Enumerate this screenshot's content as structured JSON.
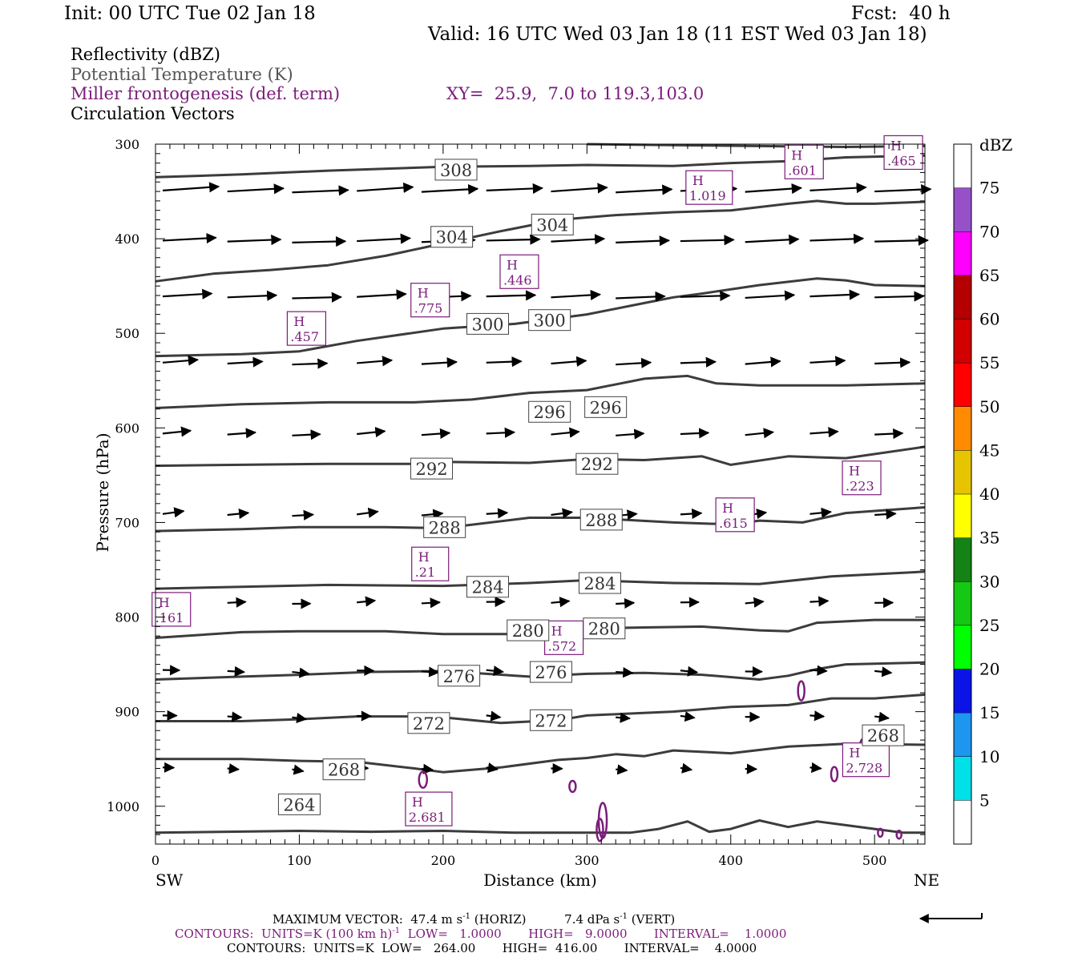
{
  "header": {
    "init": "Init: 00 UTC Tue 02 Jan 18",
    "fcst": "Fcst:  40 h",
    "valid": "Valid: 16 UTC Wed 03 Jan 18 (11 EST Wed 03 Jan 18)"
  },
  "legend": {
    "reflectivity": "Reflectivity (dBZ)",
    "theta": "Potential Temperature (K)",
    "frontogenesis": "Miller frontogenesis (def. term)",
    "xy": "XY=  25.9,  7.0 to 119.3,103.0",
    "vectors": "Circulation Vectors"
  },
  "colors": {
    "theta_contour": "#3c3c3c",
    "frontogenesis": "#7a1c7a",
    "vectors": "#000000"
  },
  "footer": {
    "max_vector_a": "MAXIMUM VECTOR:  47.4 m s",
    "max_vector_b": " (HORIZ)",
    "max_vector_c": "7.4 dPa s",
    "max_vector_d": " (VERT)",
    "sup_minus1": "-1",
    "contours_fg_a": "CONTOURS:  UNITS=K (100 km h)",
    "contours_fg_b": "  LOW=   1.0000       HIGH=   9.0000       INTERVAL=    1.0000",
    "contours_theta": "CONTOURS:  UNITS=K  LOW=   264.00       HIGH=  416.00       INTERVAL=    4.0000"
  },
  "chart_data": {
    "type": "cross-section",
    "xlabel": "Distance (km)",
    "ylabel": "Pressure (hPa)",
    "xlim": [
      0,
      535
    ],
    "ylim": [
      1040,
      300
    ],
    "x_ticks": [
      0,
      100,
      200,
      300,
      400,
      500
    ],
    "y_ticks": [
      300,
      400,
      500,
      600,
      700,
      800,
      900,
      1000
    ],
    "x_end_labels": {
      "left": "SW",
      "right": "NE"
    },
    "colorbar": {
      "title": "dBZ",
      "levels": [
        "5",
        "10",
        "15",
        "20",
        "25",
        "30",
        "35",
        "40",
        "45",
        "50",
        "55",
        "60",
        "65",
        "70",
        "75"
      ],
      "colors": [
        "#ffffff",
        "#00e0e8",
        "#1c96ee",
        "#0a14e6",
        "#00ff00",
        "#14c814",
        "#148214",
        "#ffff00",
        "#e6c400",
        "#ff8c00",
        "#ff0000",
        "#d20000",
        "#b40000",
        "#ff00ff",
        "#9650c8",
        "#ffffff"
      ]
    },
    "theta_contours": [
      {
        "label": "264",
        "points": [
          [
            0,
            1028
          ],
          [
            50,
            1027
          ],
          [
            100,
            1026
          ],
          [
            150,
            1027
          ],
          [
            200,
            1026
          ],
          [
            250,
            1028
          ],
          [
            300,
            1028
          ],
          [
            330,
            1028
          ],
          [
            350,
            1024
          ],
          [
            370,
            1016
          ],
          [
            385,
            1027
          ],
          [
            400,
            1024
          ],
          [
            420,
            1015
          ],
          [
            440,
            1022
          ],
          [
            460,
            1016
          ],
          [
            480,
            1020
          ],
          [
            500,
            1024
          ],
          [
            520,
            1028
          ],
          [
            535,
            1028
          ]
        ]
      },
      {
        "label": "268",
        "points": [
          [
            0,
            950
          ],
          [
            60,
            950
          ],
          [
            100,
            952
          ],
          [
            140,
            953
          ],
          [
            180,
            960
          ],
          [
            200,
            964
          ],
          [
            240,
            959
          ],
          [
            280,
            951
          ],
          [
            300,
            949
          ],
          [
            320,
            945
          ],
          [
            340,
            947
          ],
          [
            360,
            941
          ],
          [
            400,
            944
          ],
          [
            440,
            937
          ],
          [
            480,
            934
          ],
          [
            535,
            935
          ]
        ]
      },
      {
        "label": "272",
        "points": [
          [
            0,
            910
          ],
          [
            60,
            910
          ],
          [
            100,
            908
          ],
          [
            140,
            905
          ],
          [
            180,
            905
          ],
          [
            200,
            906
          ],
          [
            240,
            912
          ],
          [
            280,
            909
          ],
          [
            300,
            904
          ],
          [
            330,
            902
          ],
          [
            360,
            900
          ],
          [
            400,
            895
          ],
          [
            440,
            893
          ],
          [
            470,
            886
          ],
          [
            500,
            886
          ],
          [
            535,
            882
          ]
        ]
      },
      {
        "label": "276",
        "points": [
          [
            0,
            866
          ],
          [
            60,
            863
          ],
          [
            100,
            861
          ],
          [
            150,
            858
          ],
          [
            200,
            857
          ],
          [
            260,
            863
          ],
          [
            300,
            860
          ],
          [
            340,
            859
          ],
          [
            380,
            861
          ],
          [
            420,
            866
          ],
          [
            440,
            862
          ],
          [
            460,
            855
          ],
          [
            480,
            850
          ],
          [
            535,
            848
          ]
        ]
      },
      {
        "label": "280",
        "points": [
          [
            0,
            822
          ],
          [
            60,
            816
          ],
          [
            100,
            815
          ],
          [
            160,
            815
          ],
          [
            200,
            818
          ],
          [
            260,
            818
          ],
          [
            300,
            812
          ],
          [
            340,
            811
          ],
          [
            380,
            810
          ],
          [
            420,
            814
          ],
          [
            440,
            815
          ],
          [
            460,
            806
          ],
          [
            500,
            803
          ],
          [
            535,
            803
          ]
        ]
      },
      {
        "label": "284",
        "points": [
          [
            0,
            770
          ],
          [
            60,
            768
          ],
          [
            120,
            766
          ],
          [
            200,
            767
          ],
          [
            260,
            764
          ],
          [
            300,
            761
          ],
          [
            360,
            764
          ],
          [
            420,
            765
          ],
          [
            470,
            757
          ],
          [
            535,
            752
          ]
        ]
      },
      {
        "label": "288",
        "points": [
          [
            0,
            709
          ],
          [
            60,
            707
          ],
          [
            100,
            705
          ],
          [
            160,
            705
          ],
          [
            200,
            706
          ],
          [
            260,
            695
          ],
          [
            300,
            695
          ],
          [
            360,
            700
          ],
          [
            400,
            702
          ],
          [
            420,
            698
          ],
          [
            450,
            700
          ],
          [
            480,
            690
          ],
          [
            535,
            684
          ]
        ]
      },
      {
        "label": "292",
        "points": [
          [
            0,
            640
          ],
          [
            60,
            639
          ],
          [
            120,
            638
          ],
          [
            180,
            638
          ],
          [
            200,
            636
          ],
          [
            260,
            637
          ],
          [
            300,
            633
          ],
          [
            340,
            634
          ],
          [
            380,
            630
          ],
          [
            400,
            639
          ],
          [
            440,
            630
          ],
          [
            480,
            632
          ],
          [
            535,
            620
          ]
        ]
      },
      {
        "label": "296",
        "points": [
          [
            0,
            579
          ],
          [
            60,
            575
          ],
          [
            120,
            573
          ],
          [
            180,
            573
          ],
          [
            220,
            570
          ],
          [
            260,
            563
          ],
          [
            300,
            560
          ],
          [
            340,
            548
          ],
          [
            370,
            545
          ],
          [
            390,
            553
          ],
          [
            420,
            555
          ],
          [
            480,
            555
          ],
          [
            535,
            553
          ]
        ]
      },
      {
        "label": "300",
        "points": [
          [
            0,
            524
          ],
          [
            60,
            522
          ],
          [
            100,
            519
          ],
          [
            140,
            508
          ],
          [
            200,
            495
          ],
          [
            250,
            490
          ],
          [
            300,
            480
          ],
          [
            340,
            468
          ],
          [
            360,
            462
          ],
          [
            380,
            458
          ],
          [
            420,
            449
          ],
          [
            460,
            442
          ],
          [
            480,
            444
          ],
          [
            500,
            449
          ],
          [
            535,
            450
          ]
        ]
      },
      {
        "label": "304",
        "points": [
          [
            0,
            445
          ],
          [
            40,
            437
          ],
          [
            80,
            433
          ],
          [
            120,
            428
          ],
          [
            160,
            418
          ],
          [
            200,
            405
          ],
          [
            240,
            392
          ],
          [
            280,
            380
          ],
          [
            320,
            375
          ],
          [
            360,
            372
          ],
          [
            400,
            370
          ],
          [
            440,
            363
          ],
          [
            460,
            360
          ],
          [
            480,
            363
          ],
          [
            500,
            363
          ],
          [
            535,
            361
          ]
        ]
      },
      {
        "label": "308",
        "points": [
          [
            0,
            335
          ],
          [
            60,
            332
          ],
          [
            120,
            328
          ],
          [
            200,
            324
          ],
          [
            260,
            323
          ],
          [
            300,
            322
          ],
          [
            360,
            323
          ],
          [
            400,
            320
          ],
          [
            440,
            318
          ],
          [
            480,
            314
          ],
          [
            535,
            312
          ]
        ]
      },
      {
        "label": "",
        "points": [
          [
            300,
            300
          ],
          [
            360,
            301
          ],
          [
            420,
            302
          ],
          [
            480,
            303
          ],
          [
            535,
            302
          ]
        ]
      }
    ],
    "theta_labels": [
      {
        "text": "264",
        "x": 100,
        "p": 998
      },
      {
        "text": "268",
        "x": 131,
        "p": 961
      },
      {
        "text": "272",
        "x": 190,
        "p": 912
      },
      {
        "text": "272",
        "x": 275,
        "p": 909
      },
      {
        "text": "276",
        "x": 211,
        "p": 862
      },
      {
        "text": "276",
        "x": 275,
        "p": 858
      },
      {
        "text": "280",
        "x": 259,
        "p": 814
      },
      {
        "text": "280",
        "x": 312,
        "p": 812
      },
      {
        "text": "268",
        "x": 506,
        "p": 925
      },
      {
        "text": "284",
        "x": 231,
        "p": 768
      },
      {
        "text": "284",
        "x": 309,
        "p": 764
      },
      {
        "text": "288",
        "x": 201,
        "p": 705
      },
      {
        "text": "288",
        "x": 310,
        "p": 697
      },
      {
        "text": "292",
        "x": 192,
        "p": 643
      },
      {
        "text": "292",
        "x": 307,
        "p": 638
      },
      {
        "text": "296",
        "x": 274,
        "p": 583
      },
      {
        "text": "296",
        "x": 313,
        "p": 578
      },
      {
        "text": "300",
        "x": 231,
        "p": 490
      },
      {
        "text": "300",
        "x": 274,
        "p": 486
      },
      {
        "text": "304",
        "x": 206,
        "p": 398
      },
      {
        "text": "304",
        "x": 276,
        "p": 385
      },
      {
        "text": "308",
        "x": 209,
        "p": 327
      }
    ],
    "frontogenesis_maxima": [
      {
        "text": ".465",
        "x": 520,
        "p": 308
      },
      {
        "text": ".601",
        "x": 451,
        "p": 318
      },
      {
        "text": "1.019",
        "x": 385,
        "p": 345
      },
      {
        "text": ".446",
        "x": 253,
        "p": 434
      },
      {
        "text": ".775",
        "x": 191,
        "p": 464
      },
      {
        "text": ".457",
        "x": 105,
        "p": 494
      },
      {
        "text": ".223",
        "x": 491,
        "p": 652
      },
      {
        "text": ".615",
        "x": 403,
        "p": 691
      },
      {
        "text": ".21",
        "x": 191,
        "p": 743
      },
      {
        "text": ".161",
        "x": 11,
        "p": 791
      },
      {
        "text": ".572",
        "x": 284,
        "p": 821
      },
      {
        "text": "2.728",
        "x": 494,
        "p": 950
      },
      {
        "text": "2.681",
        "x": 190,
        "p": 1002
      }
    ],
    "vectors": {
      "rows": [
        {
          "p": 350,
          "dx": 40,
          "dp": -3
        },
        {
          "p": 403,
          "dx": 38,
          "dp": -2
        },
        {
          "p": 462,
          "dx": 35,
          "dp": -2
        },
        {
          "p": 532,
          "dx": 25,
          "dp": -2
        },
        {
          "p": 607,
          "dx": 20,
          "dp": -2
        },
        {
          "p": 692,
          "dx": 15,
          "dp": -2
        },
        {
          "p": 785,
          "dx": 13,
          "dp": -1
        },
        {
          "p": 857,
          "dx": 12,
          "dp": 1
        },
        {
          "p": 905,
          "dx": 10,
          "dp": 1
        },
        {
          "p": 960,
          "dx": 8,
          "dp": 1
        }
      ],
      "x_positions": [
        5,
        50,
        95,
        140,
        185,
        230,
        275,
        320,
        365,
        410,
        455,
        500
      ]
    },
    "reference_vector_label": "←"
  }
}
